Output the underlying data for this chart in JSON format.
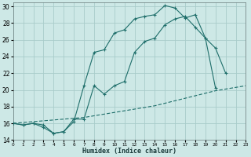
{
  "xlabel": "Humidex (Indice chaleur)",
  "bg_color": "#cde8e6",
  "grid_color": "#a8ccca",
  "line_color": "#1e6e6a",
  "xlim": [
    0,
    23
  ],
  "ylim": [
    14,
    30.5
  ],
  "xticks": [
    0,
    1,
    2,
    3,
    4,
    5,
    6,
    7,
    8,
    9,
    10,
    11,
    12,
    13,
    14,
    15,
    16,
    17,
    18,
    19,
    20,
    21,
    22,
    23
  ],
  "yticks": [
    14,
    16,
    18,
    20,
    22,
    24,
    26,
    28,
    30
  ],
  "line1_x": [
    0,
    1,
    2,
    3,
    4,
    5,
    6,
    7,
    8,
    9,
    10,
    11,
    12,
    13,
    14,
    15,
    16,
    17,
    18,
    19,
    20,
    21
  ],
  "line1_y": [
    16.0,
    15.8,
    16.0,
    15.8,
    14.8,
    15.0,
    16.2,
    20.5,
    24.5,
    24.8,
    26.8,
    27.2,
    28.5,
    28.8,
    29.0,
    30.1,
    29.8,
    28.6,
    29.0,
    26.2,
    25.0,
    22.0
  ],
  "line2_x": [
    0,
    1,
    2,
    3,
    4,
    5,
    6,
    7,
    8,
    9,
    10,
    11,
    12,
    13,
    14,
    15,
    16,
    17,
    18,
    19,
    20
  ],
  "line2_y": [
    16.0,
    15.8,
    16.0,
    15.5,
    14.8,
    15.0,
    16.5,
    16.5,
    20.5,
    19.5,
    20.5,
    21.0,
    24.5,
    25.8,
    26.2,
    27.8,
    28.5,
    28.8,
    27.5,
    26.2,
    20.2
  ],
  "line3_x": [
    0,
    1,
    2,
    3,
    4,
    5,
    6,
    7,
    8,
    9,
    10,
    11,
    12,
    13,
    14,
    15,
    16,
    17,
    18,
    19,
    20,
    21,
    22,
    23
  ],
  "line3_y": [
    16.0,
    16.1,
    16.2,
    16.3,
    16.4,
    16.5,
    16.6,
    16.7,
    16.9,
    17.1,
    17.3,
    17.5,
    17.7,
    17.9,
    18.1,
    18.4,
    18.7,
    19.0,
    19.3,
    19.6,
    19.9,
    20.1,
    20.3,
    20.5
  ]
}
